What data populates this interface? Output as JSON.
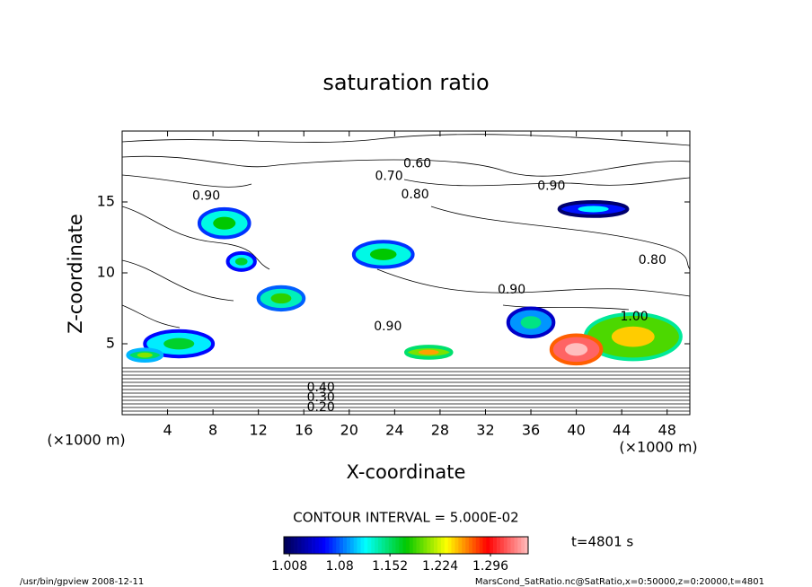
{
  "chart_data": {
    "type": "contour",
    "title": "saturation ratio",
    "xlabel": "X-coordinate",
    "ylabel": "Z-coordinate",
    "xunit": "(×1000 m)",
    "yunit": "(×1000 m)",
    "xlim": [
      0,
      50
    ],
    "ylim": [
      0,
      20
    ],
    "xticks": [
      4,
      8,
      12,
      16,
      20,
      24,
      28,
      32,
      36,
      40,
      44,
      48
    ],
    "yticks": [
      5,
      10,
      15
    ],
    "contour_interval_text": "CONTOUR INTERVAL = 5.000E-02",
    "time_text": "t=4801 s",
    "clim": [
      1.0,
      1.35
    ],
    "colorbar_ticks": [
      1.008,
      1.08,
      1.152,
      1.224,
      1.296
    ],
    "contour_labels": [
      {
        "text": "0.60",
        "x": 26.0,
        "y": 17.7
      },
      {
        "text": "0.70",
        "x": 23.5,
        "y": 16.8
      },
      {
        "text": "0.80",
        "x": 25.8,
        "y": 15.5
      },
      {
        "text": "0.90",
        "x": 7.4,
        "y": 15.4
      },
      {
        "text": "0.90",
        "x": 37.8,
        "y": 16.1
      },
      {
        "text": "0.80",
        "x": 46.7,
        "y": 10.9
      },
      {
        "text": "0.90",
        "x": 34.3,
        "y": 8.8
      },
      {
        "text": "1.00",
        "x": 45.1,
        "y": 6.9
      },
      {
        "text": "0.90",
        "x": 23.4,
        "y": 6.2
      },
      {
        "text": "0.40",
        "x": 17.5,
        "y": 1.9
      },
      {
        "text": "0.30",
        "x": 17.5,
        "y": 1.2
      },
      {
        "text": "0.20",
        "x": 17.5,
        "y": 0.5
      }
    ],
    "regions": [
      {
        "x": 9,
        "y": 13.5,
        "rx": 2.2,
        "ry": 1.0,
        "value": 1.07
      },
      {
        "x": 10.5,
        "y": 10.8,
        "rx": 1.2,
        "ry": 0.6,
        "value": 1.06
      },
      {
        "x": 14,
        "y": 8.2,
        "rx": 2.0,
        "ry": 0.8,
        "value": 1.08
      },
      {
        "x": 23,
        "y": 11.3,
        "rx": 2.6,
        "ry": 0.9,
        "value": 1.07
      },
      {
        "x": 41.5,
        "y": 14.5,
        "rx": 3.0,
        "ry": 0.5,
        "value": 1.01
      },
      {
        "x": 45,
        "y": 5.5,
        "rx": 4.2,
        "ry": 1.6,
        "value": 1.14
      },
      {
        "x": 40,
        "y": 4.6,
        "rx": 2.2,
        "ry": 1.0,
        "value": 1.27
      },
      {
        "x": 36,
        "y": 6.5,
        "rx": 2.0,
        "ry": 1.0,
        "value": 1.04
      },
      {
        "x": 5,
        "y": 5.0,
        "rx": 3.0,
        "ry": 0.9,
        "value": 1.06
      },
      {
        "x": 27,
        "y": 4.4,
        "rx": 2.0,
        "ry": 0.4,
        "value": 1.15
      },
      {
        "x": 2,
        "y": 4.2,
        "rx": 1.5,
        "ry": 0.4,
        "value": 1.1
      }
    ],
    "footer_left": "/usr/bin/gpview   2008-12-11",
    "footer_right": "MarsCond_SatRatio.nc@SatRatio,x=0:50000,z=0:20000,t=4801"
  }
}
